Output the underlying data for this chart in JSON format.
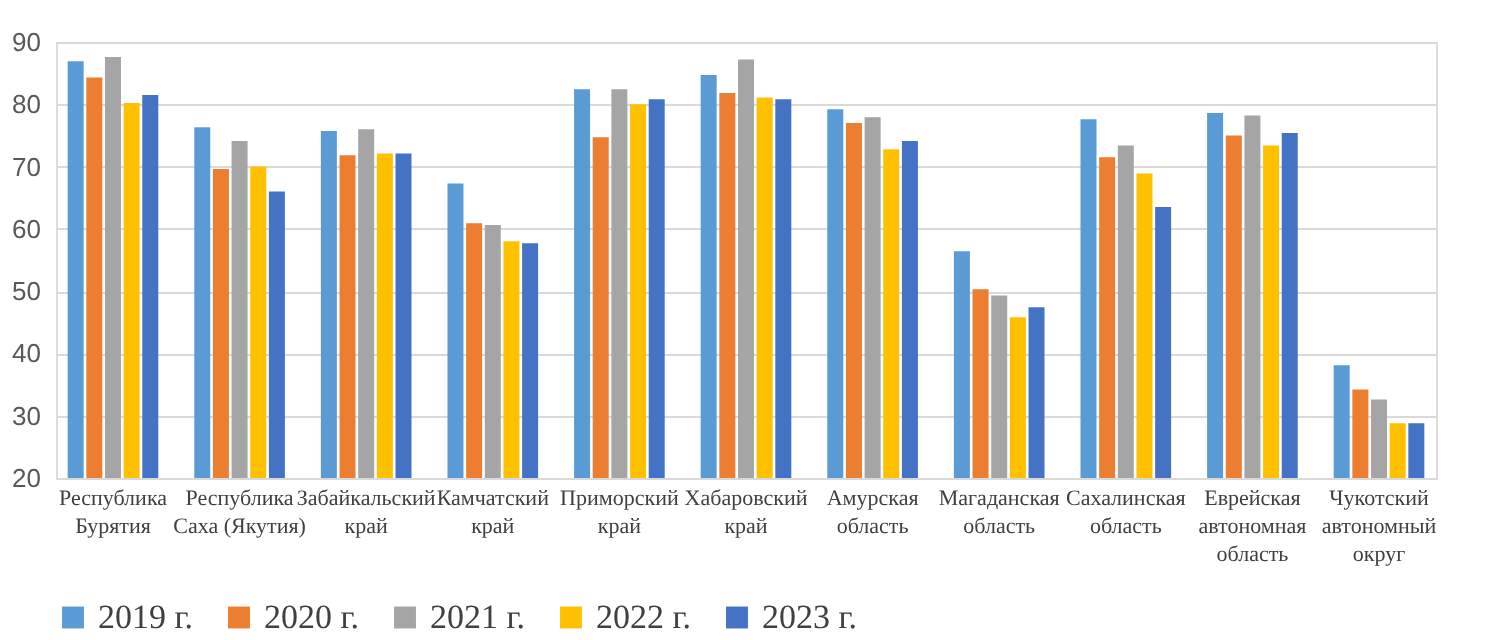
{
  "chart_data": {
    "type": "bar",
    "categories": [
      "Республика Бурятия",
      "Республика Саха (Якутия)",
      "Забайкальский край",
      "Камчатский край",
      "Приморский край",
      "Хабаровский край",
      "Амурская область",
      "Магаданская область",
      "Сахалинская область",
      "Еврейская автономная область",
      "Чукотский автономный округ"
    ],
    "series": [
      {
        "name": "2019 г.",
        "color": "#5b9bd5",
        "values": [
          86.9,
          76.3,
          75.7,
          67.3,
          82.4,
          84.7,
          79.2,
          56.4,
          77.6,
          78.6,
          38.1
        ]
      },
      {
        "name": "2020 г.",
        "color": "#ed7d31",
        "values": [
          84.3,
          69.6,
          71.8,
          60.9,
          74.7,
          81.8,
          77.0,
          50.3,
          71.5,
          75.0,
          34.2
        ]
      },
      {
        "name": "2021 г.",
        "color": "#a5a5a5",
        "values": [
          87.6,
          74.1,
          76.0,
          60.6,
          82.4,
          87.2,
          77.9,
          49.3,
          73.4,
          78.2,
          32.6
        ]
      },
      {
        "name": "2022 г.",
        "color": "#ffc000",
        "values": [
          80.2,
          70.0,
          72.1,
          58.0,
          80.0,
          81.1,
          72.8,
          45.8,
          68.9,
          73.4,
          28.8
        ]
      },
      {
        "name": "2023 г.",
        "color": "#4472c4",
        "values": [
          81.5,
          66.0,
          72.1,
          57.7,
          80.8,
          80.8,
          74.1,
          47.4,
          63.5,
          75.4,
          28.8
        ]
      }
    ],
    "ylim": [
      20,
      90
    ],
    "yticks": [
      20,
      30,
      40,
      50,
      60,
      70,
      80,
      90
    ],
    "grid": "y",
    "legend": "bottom"
  }
}
